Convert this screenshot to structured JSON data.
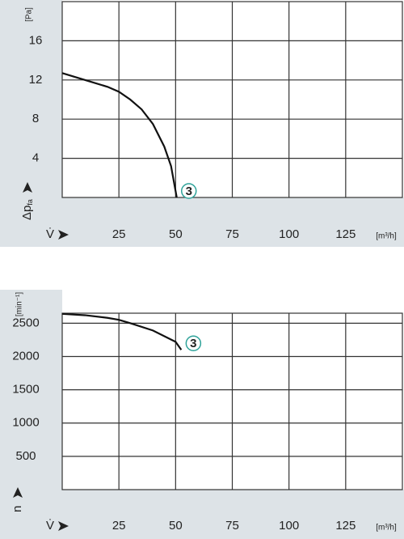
{
  "chart_data": [
    {
      "type": "line",
      "y_label": "Δp",
      "y_label_subscript": "fa",
      "y_unit": "[Pa]",
      "x_label": "V̇",
      "x_unit": "[m³/h]",
      "xlim": [
        0,
        150
      ],
      "xticks": [
        25,
        50,
        75,
        100,
        125
      ],
      "ylim": [
        0,
        20
      ],
      "yticks": [
        4,
        8,
        12,
        16
      ],
      "grid": true,
      "series": [
        {
          "name": "3",
          "color": "#111111",
          "marker_color": "#2fa39a",
          "x": [
            0,
            10,
            20,
            25,
            30,
            35,
            40,
            45,
            48,
            50.5
          ],
          "values": [
            12.7,
            12.0,
            11.3,
            10.8,
            10.0,
            9.0,
            7.5,
            5.2,
            3.2,
            0
          ]
        }
      ]
    },
    {
      "type": "line",
      "y_label": "n",
      "y_unit": "[min⁻¹]",
      "x_label": "V̇",
      "x_unit": "[m³/h]",
      "xlim": [
        0,
        150
      ],
      "xticks": [
        25,
        50,
        75,
        100,
        125
      ],
      "ylim": [
        0,
        2650
      ],
      "yticks": [
        500,
        1000,
        1500,
        2000,
        2500
      ],
      "grid": true,
      "series": [
        {
          "name": "3",
          "color": "#111111",
          "marker_color": "#2fa39a",
          "x": [
            0,
            10,
            20,
            25,
            30,
            40,
            50,
            52.5
          ],
          "values": [
            2640,
            2620,
            2580,
            2550,
            2500,
            2390,
            2220,
            2100
          ]
        }
      ]
    }
  ]
}
